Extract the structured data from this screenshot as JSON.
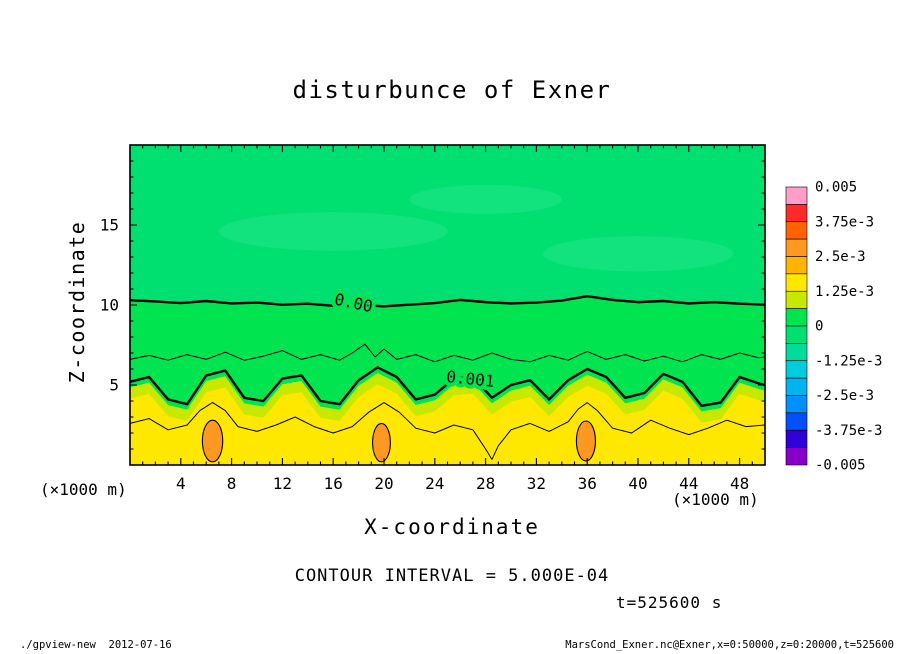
{
  "chart_data": {
    "type": "heatmap",
    "variant": "filled-contour-with-line-contours",
    "title": "disturbunce of Exner",
    "xlabel": "X-coordinate",
    "ylabel": "Z-coordinate",
    "x_unit_label": "(×1000 m)",
    "y_unit_label": "(×1000 m)",
    "contour_interval_label": "CONTOUR INTERVAL = 5.000E-04",
    "time_label": "t=525600 s",
    "xlim": [
      0,
      50
    ],
    "ylim": [
      0,
      20
    ],
    "x_ticks": [
      4,
      8,
      12,
      16,
      20,
      24,
      28,
      32,
      36,
      40,
      44,
      48
    ],
    "y_ticks": [
      5,
      10,
      15
    ],
    "contour_interval": 0.0005,
    "colorbar": {
      "min": -0.005,
      "max": 0.005,
      "tick_labels": [
        "0.005",
        "3.75e-3",
        "2.5e-3",
        "1.25e-3",
        "0",
        "-1.25e-3",
        "-2.5e-3",
        "-3.75e-3",
        "-0.005"
      ],
      "cell_colors_top_to_bottom": [
        "#ff9ec8",
        "#ff2a2a",
        "#ff6400",
        "#ff9820",
        "#ffb400",
        "#ffe800",
        "#c8e800",
        "#00e450",
        "#00e070",
        "#00dc9c",
        "#00ccdd",
        "#00b4f0",
        "#0090ff",
        "#0050ff",
        "#3000d8",
        "#8800c8"
      ]
    },
    "bands": {
      "above_zero": "#00e070",
      "below_zero": "#00e450",
      "yellow_green": "#c8e800",
      "yellow": "#ffe800",
      "blob": "#ff9820",
      "patch": "#2ae690"
    },
    "patches": [
      {
        "cx": 16,
        "cz": 14.6,
        "rx": 9,
        "rz": 1.2
      },
      {
        "cx": 40,
        "cz": 13.2,
        "rx": 7.5,
        "rz": 1.1
      },
      {
        "cx": 28,
        "cz": 16.6,
        "rx": 6,
        "rz": 0.9
      }
    ],
    "blobs": [
      {
        "cx": 6.5,
        "cz": 1.5,
        "rx": 0.8,
        "rz": 1.3
      },
      {
        "cx": 19.8,
        "cz": 1.4,
        "rx": 0.7,
        "rz": 1.2
      },
      {
        "cx": 35.9,
        "cz": 1.5,
        "rx": 0.75,
        "rz": 1.25
      }
    ],
    "contours": [
      {
        "name": "zero",
        "value": 0,
        "label": "0.00",
        "label_at": [
          17.6,
          10.1
        ],
        "label_rot": 12,
        "halo": "#00e450",
        "width": 2.4,
        "x": [
          0,
          2,
          4,
          6,
          8,
          10,
          12,
          14,
          16,
          18,
          20,
          22,
          24,
          26,
          28,
          30,
          32,
          34,
          36,
          38,
          40,
          42,
          44,
          46,
          48,
          50
        ],
        "z": [
          10.3,
          10.22,
          10.12,
          10.25,
          10.1,
          10.15,
          10.02,
          10.08,
          9.95,
          10.0,
          9.92,
          10.02,
          10.12,
          10.32,
          10.18,
          10.1,
          10.15,
          10.28,
          10.55,
          10.32,
          10.18,
          10.25,
          10.1,
          10.18,
          10.08,
          10.02
        ]
      },
      {
        "name": "half_em3",
        "value": 0.0005,
        "width": 1,
        "x": [
          0,
          1.5,
          3,
          4.5,
          6,
          7.5,
          9,
          10.5,
          12,
          13.5,
          15,
          16.5,
          17.5,
          18.5,
          19.3,
          20,
          21,
          22.5,
          24,
          25.5,
          27,
          28.5,
          30,
          31.5,
          33,
          34.5,
          36,
          37.5,
          39,
          40.5,
          42,
          43.5,
          45,
          46.5,
          48,
          49.5,
          50
        ],
        "z": [
          6.6,
          6.85,
          6.55,
          6.9,
          6.6,
          7.05,
          6.55,
          6.8,
          7.15,
          6.6,
          6.9,
          6.55,
          7.0,
          7.55,
          6.75,
          7.25,
          6.6,
          6.9,
          6.45,
          6.85,
          6.55,
          7.0,
          6.6,
          6.45,
          6.85,
          6.55,
          7.1,
          6.6,
          6.9,
          6.5,
          6.8,
          6.45,
          6.9,
          6.6,
          7.0,
          6.7,
          6.75
        ]
      },
      {
        "name": "one_em3",
        "value": 0.001,
        "label": "0.001",
        "label_at": [
          26.8,
          5.35
        ],
        "label_rot": 6,
        "halo": "#00e450",
        "width": 2.4,
        "x": [
          0,
          1.5,
          3,
          4.5,
          6,
          7.5,
          9,
          10.5,
          12,
          13.5,
          15,
          16.5,
          18,
          19.5,
          21,
          22.5,
          24,
          25.5,
          27,
          28.5,
          30,
          31.5,
          33,
          34.5,
          36,
          37.5,
          39,
          40.5,
          42,
          43.5,
          45,
          46.5,
          48,
          49.5,
          50
        ],
        "z": [
          5.2,
          5.5,
          4.1,
          3.8,
          5.6,
          5.9,
          4.2,
          4.0,
          5.4,
          5.6,
          4.0,
          3.8,
          5.3,
          6.1,
          5.5,
          4.1,
          4.4,
          5.4,
          5.5,
          4.2,
          5.0,
          5.3,
          4.1,
          5.3,
          6.0,
          5.5,
          4.2,
          4.5,
          5.7,
          5.2,
          3.7,
          3.9,
          5.5,
          5.1,
          5.0
        ]
      },
      {
        "name": "one_half_em3",
        "value": 0.0015,
        "width": 1,
        "x": [
          0,
          1.5,
          3,
          4.5,
          5.5,
          6.5,
          7.5,
          8.5,
          10,
          11.5,
          13,
          14.5,
          16,
          17.5,
          18.8,
          20,
          21.2,
          22.5,
          24,
          25.5,
          27,
          28,
          28.5,
          29,
          30,
          31.5,
          33,
          34.5,
          35.3,
          36,
          36.8,
          38,
          39.5,
          41,
          42.5,
          44,
          45.5,
          47,
          48.5,
          50
        ],
        "z": [
          2.6,
          2.9,
          2.2,
          2.5,
          3.4,
          3.9,
          3.4,
          2.4,
          2.1,
          2.5,
          3.0,
          2.4,
          2.0,
          2.4,
          3.3,
          3.9,
          3.3,
          2.3,
          2.0,
          2.5,
          2.2,
          1.0,
          0.35,
          1.2,
          2.2,
          2.6,
          2.1,
          2.7,
          3.5,
          3.9,
          3.4,
          2.3,
          2.0,
          2.8,
          2.3,
          1.9,
          2.3,
          2.8,
          2.4,
          2.5
        ]
      }
    ]
  },
  "footer": {
    "left": "./gpview-new  2012-07-16",
    "right": "MarsCond_Exner.nc@Exner,x=0:50000,z=0:20000,t=525600"
  }
}
